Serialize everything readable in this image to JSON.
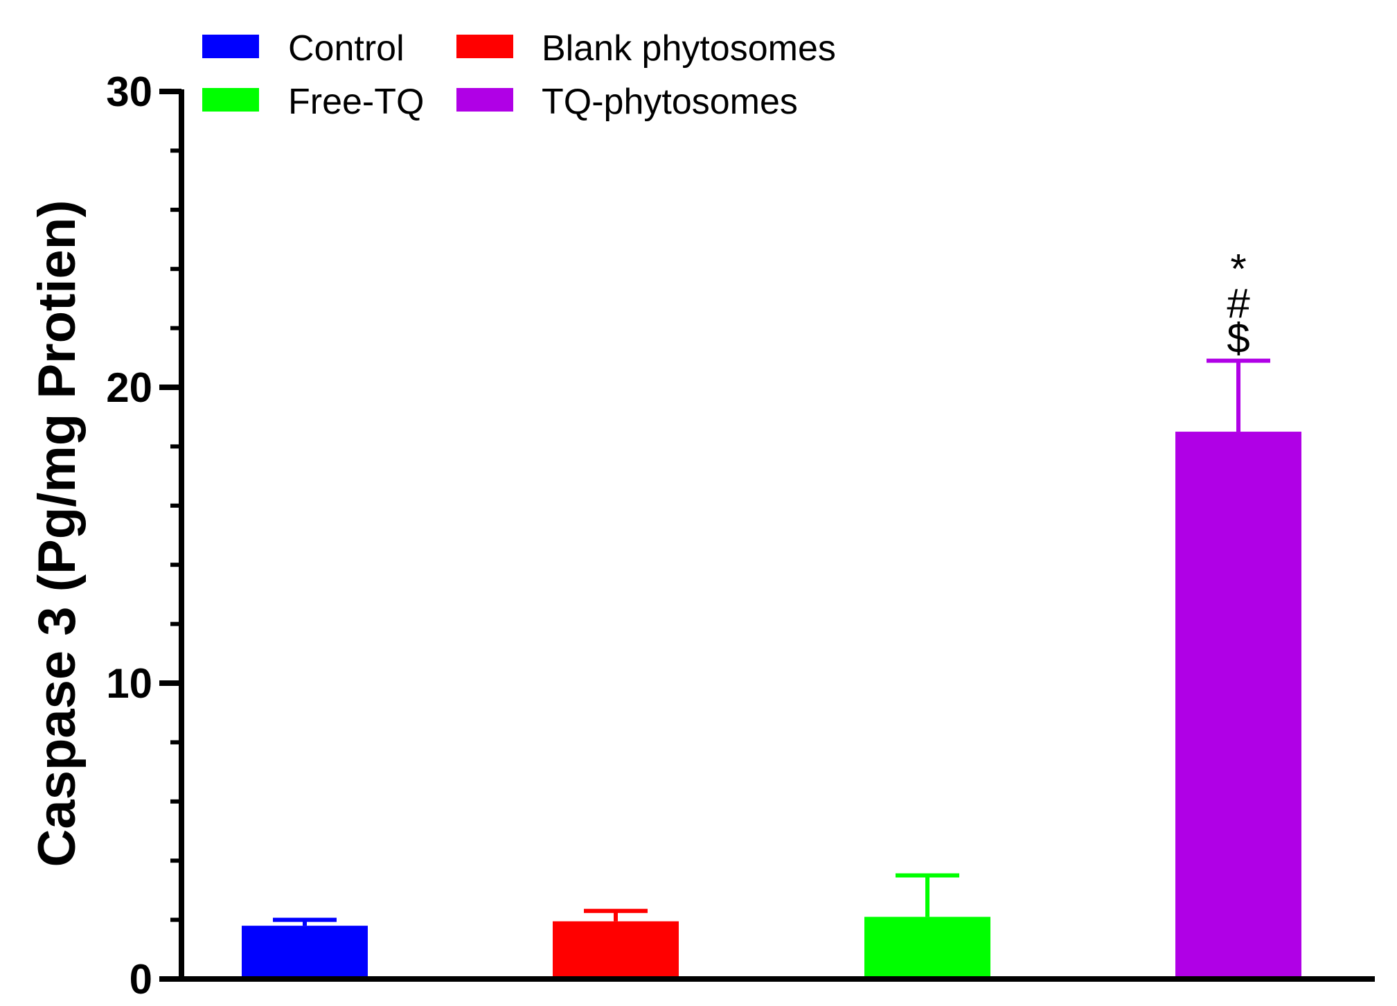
{
  "chart_data": {
    "type": "bar",
    "title": "",
    "xlabel": "",
    "ylabel": "Caspase 3 (Pg/mg Protien)",
    "ylim": [
      0,
      30
    ],
    "yticks": [
      0,
      10,
      20,
      30
    ],
    "grid": false,
    "legend_position": "top-left",
    "series": [
      {
        "name": "Control",
        "value": 1.8,
        "error": 0.2,
        "color": "#0000ff",
        "annotation": ""
      },
      {
        "name": "Blank phytosomes",
        "value": 1.95,
        "error": 0.35,
        "color": "#ff0000",
        "annotation": ""
      },
      {
        "name": "Free-TQ",
        "value": 2.1,
        "error": 1.4,
        "color": "#00ff00",
        "annotation": ""
      },
      {
        "name": "TQ-phytosomes",
        "value": 18.5,
        "error": 2.4,
        "color": "#b000e6",
        "annotation": "*#$"
      }
    ]
  }
}
